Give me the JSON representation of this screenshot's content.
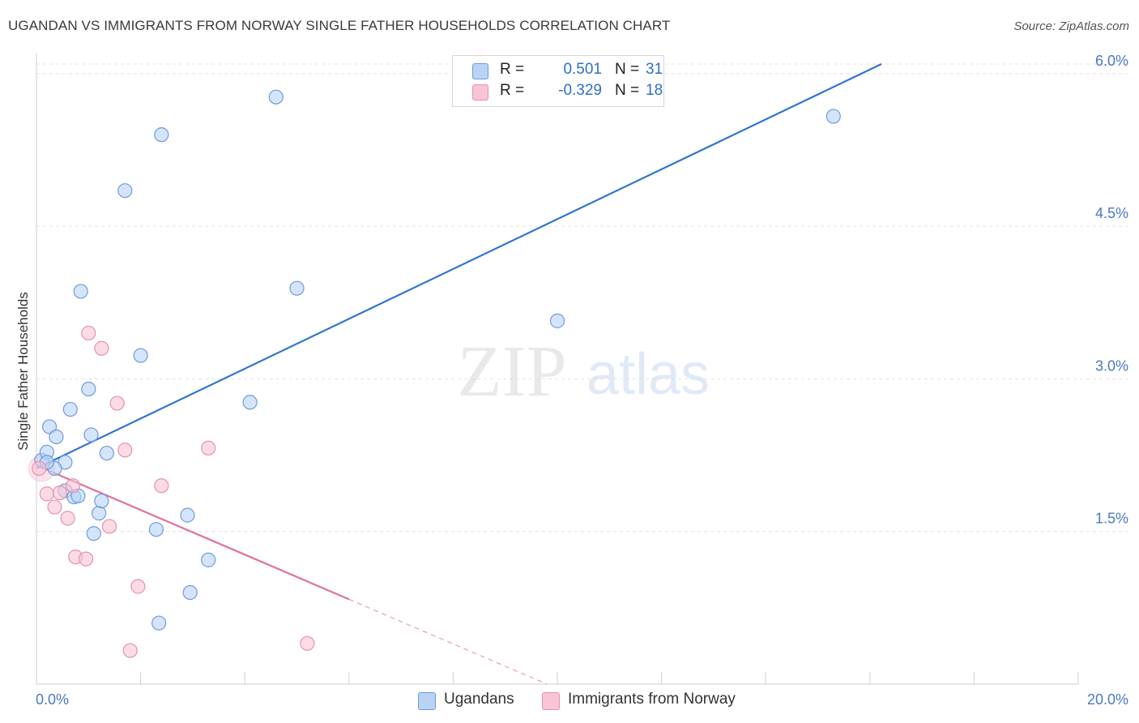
{
  "header": {
    "title": "UGANDAN VS IMMIGRANTS FROM NORWAY SINGLE FATHER HOUSEHOLDS CORRELATION CHART",
    "source": "Source: ZipAtlas.com"
  },
  "watermark": {
    "zip": "ZIP",
    "atlas": "atlas"
  },
  "colors": {
    "blue_fill": "#b9d3f5",
    "blue_stroke": "#6d9be0",
    "blue_line": "#2f74d0",
    "pink_fill": "#f9c4d3",
    "pink_stroke": "#e890ae",
    "pink_line": "#e3709a",
    "grid": "#e2e2e2",
    "tick_text": "#4a78c2"
  },
  "legend_top": [
    {
      "r_label": "R =",
      "r_value": "0.501",
      "n_label": "N =",
      "n_value": "31"
    },
    {
      "r_label": "R =",
      "r_value": "-0.329",
      "n_label": "N =",
      "n_value": "18"
    }
  ],
  "legend_bottom": [
    "Ugandans",
    "Immigrants from Norway"
  ],
  "chart_data": {
    "type": "scatter",
    "title": "UGANDAN VS IMMIGRANTS FROM NORWAY SINGLE FATHER HOUSEHOLDS CORRELATION CHART",
    "xlabel": "",
    "ylabel": "Single Father Households",
    "xlim": [
      0,
      20
    ],
    "ylim": [
      0,
      6.15
    ],
    "x_tick_labels": [
      "0.0%",
      "20.0%"
    ],
    "y_ticks": [
      1.5,
      3.0,
      4.5,
      6.0
    ],
    "y_tick_labels": [
      "1.5%",
      "3.0%",
      "4.5%",
      "6.0%"
    ],
    "grid": true,
    "legend_position": "top-center",
    "series": [
      {
        "name": "Ugandans",
        "r": 0.501,
        "n": 31,
        "trend": {
          "x0": 0.0,
          "y0": 2.12,
          "x1": 20.0,
          "y1": 7.02,
          "solid_to_x": 20.0
        },
        "points": [
          [
            0.1,
            2.2
          ],
          [
            0.2,
            2.28
          ],
          [
            0.25,
            2.53
          ],
          [
            0.38,
            2.43
          ],
          [
            0.55,
            2.18
          ],
          [
            0.65,
            2.7
          ],
          [
            0.55,
            1.9
          ],
          [
            0.72,
            1.84
          ],
          [
            0.35,
            2.12
          ],
          [
            0.85,
            3.86
          ],
          [
            1.0,
            2.9
          ],
          [
            1.05,
            2.45
          ],
          [
            1.2,
            1.68
          ],
          [
            1.25,
            1.8
          ],
          [
            1.35,
            2.27
          ],
          [
            1.1,
            1.48
          ],
          [
            1.7,
            4.85
          ],
          [
            2.0,
            3.23
          ],
          [
            2.4,
            5.4
          ],
          [
            2.3,
            1.52
          ],
          [
            2.35,
            0.6
          ],
          [
            2.9,
            1.66
          ],
          [
            2.95,
            0.9
          ],
          [
            3.3,
            1.22
          ],
          [
            4.1,
            2.77
          ],
          [
            4.6,
            5.77
          ],
          [
            5.0,
            3.89
          ],
          [
            10.0,
            3.57
          ],
          [
            15.3,
            5.58
          ],
          [
            0.2,
            2.18
          ],
          [
            0.8,
            1.85
          ]
        ]
      },
      {
        "name": "Immigrants from Norway",
        "r": -0.329,
        "n": 18,
        "trend": {
          "x0": 0.0,
          "y0": 2.15,
          "x1": 9.8,
          "y1": 0.0,
          "solid_to_x": 6.0
        },
        "points": [
          [
            0.05,
            2.12
          ],
          [
            0.2,
            1.87
          ],
          [
            0.35,
            1.74
          ],
          [
            0.45,
            1.88
          ],
          [
            0.6,
            1.63
          ],
          [
            0.75,
            1.25
          ],
          [
            0.95,
            1.23
          ],
          [
            1.0,
            3.45
          ],
          [
            1.25,
            3.3
          ],
          [
            1.4,
            1.55
          ],
          [
            1.55,
            2.76
          ],
          [
            1.7,
            2.3
          ],
          [
            1.8,
            0.33
          ],
          [
            1.95,
            0.96
          ],
          [
            2.4,
            1.95
          ],
          [
            3.3,
            2.32
          ],
          [
            5.2,
            0.4
          ],
          [
            0.7,
            1.95
          ]
        ]
      }
    ]
  }
}
